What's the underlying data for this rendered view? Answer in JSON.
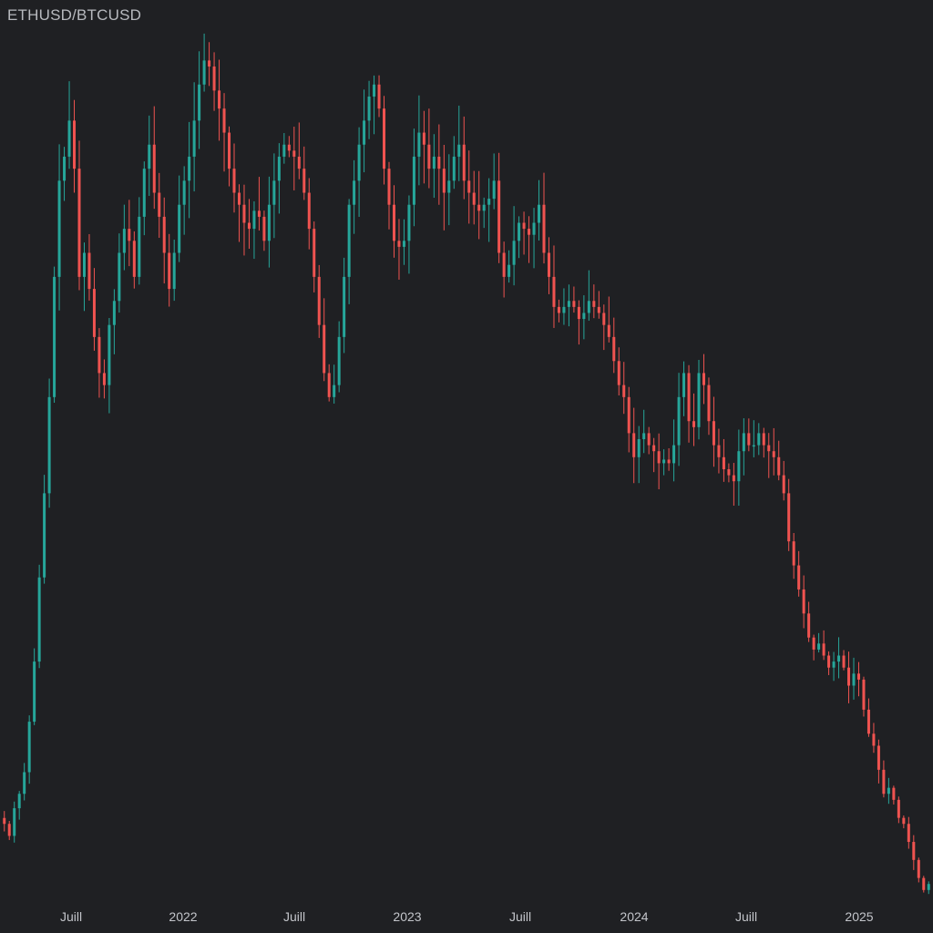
{
  "chart_data": {
    "type": "candlestick",
    "title": "ETHUSD/BTCUSD",
    "xlabel": "",
    "ylabel": "",
    "x_ticks": [
      "Juill",
      "2022",
      "Juill",
      "2023",
      "Juill",
      "2024",
      "Juill",
      "2025"
    ],
    "x_range": [
      "2021-05",
      "2025-04"
    ],
    "interval": "week",
    "ylim": [
      0.018,
      0.09
    ],
    "grid": false,
    "colors": {
      "up": "#26a69a",
      "down": "#ef5350",
      "background": "#1f2023",
      "text": "#c3c5ca"
    },
    "close_series": [
      0.0245,
      0.0235,
      0.0258,
      0.027,
      0.0288,
      0.033,
      0.038,
      0.045,
      0.052,
      0.06,
      0.07,
      0.078,
      0.08,
      0.083,
      0.079,
      0.07,
      0.072,
      0.069,
      0.065,
      0.062,
      0.061,
      0.066,
      0.068,
      0.072,
      0.074,
      0.073,
      0.07,
      0.075,
      0.079,
      0.081,
      0.077,
      0.075,
      0.072,
      0.069,
      0.072,
      0.076,
      0.078,
      0.08,
      0.083,
      0.086,
      0.088,
      0.0875,
      0.0855,
      0.084,
      0.082,
      0.079,
      0.077,
      0.076,
      0.0745,
      0.074,
      0.0755,
      0.075,
      0.073,
      0.076,
      0.078,
      0.08,
      0.081,
      0.0805,
      0.08,
      0.079,
      0.077,
      0.074,
      0.07,
      0.066,
      0.062,
      0.06,
      0.061,
      0.065,
      0.07,
      0.076,
      0.078,
      0.081,
      0.083,
      0.085,
      0.086,
      0.084,
      0.079,
      0.076,
      0.073,
      0.0725,
      0.073,
      0.076,
      0.08,
      0.082,
      0.081,
      0.079,
      0.08,
      0.079,
      0.077,
      0.078,
      0.08,
      0.081,
      0.078,
      0.077,
      0.076,
      0.0755,
      0.076,
      0.0765,
      0.078,
      0.072,
      0.07,
      0.071,
      0.073,
      0.0745,
      0.074,
      0.0735,
      0.0745,
      0.076,
      0.072,
      0.07,
      0.0675,
      0.067,
      0.0675,
      0.068,
      0.0675,
      0.0665,
      0.067,
      0.068,
      0.0675,
      0.067,
      0.066,
      0.065,
      0.063,
      0.061,
      0.06,
      0.057,
      0.055,
      0.0565,
      0.057,
      0.056,
      0.0555,
      0.0545,
      0.0548,
      0.0545,
      0.056,
      0.06,
      0.062,
      0.058,
      0.0575,
      0.062,
      0.061,
      0.058,
      0.056,
      0.055,
      0.054,
      0.0535,
      0.053,
      0.0555,
      0.057,
      0.056,
      0.056,
      0.057,
      0.056,
      0.0555,
      0.055,
      0.0535,
      0.052,
      0.048,
      0.046,
      0.044,
      0.042,
      0.04,
      0.039,
      0.0395,
      0.0385,
      0.0375,
      0.038,
      0.0385,
      0.0375,
      0.036,
      0.037,
      0.0365,
      0.034,
      0.032,
      0.031,
      0.029,
      0.027,
      0.0275,
      0.0265,
      0.025,
      0.0245,
      0.023,
      0.0215,
      0.02,
      0.019,
      0.0195
    ]
  }
}
